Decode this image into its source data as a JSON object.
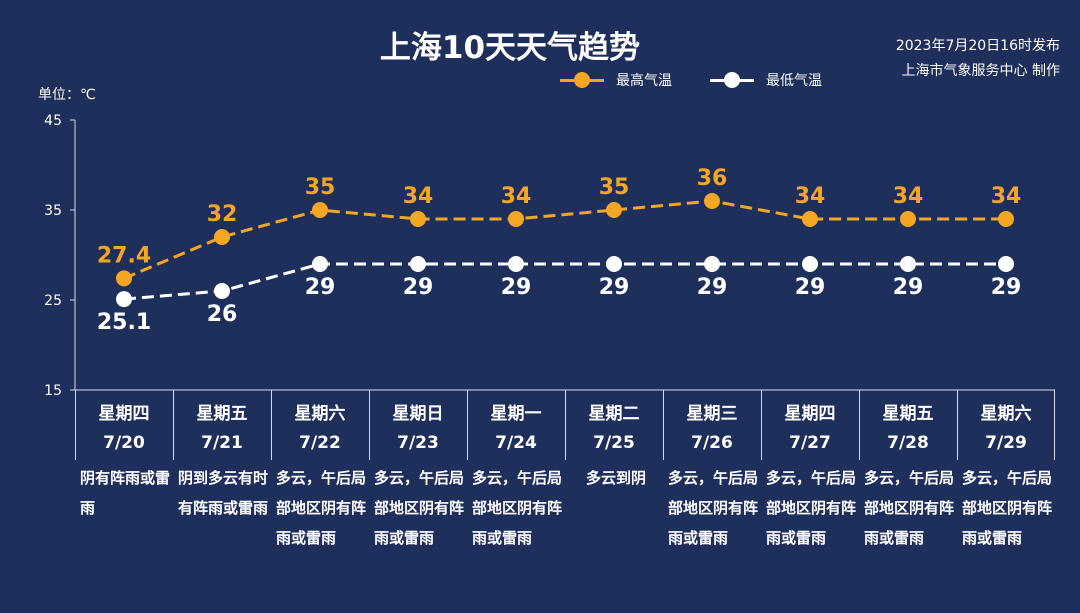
{
  "header": {
    "title": "上海10天天气趋势",
    "publish_line1": "2023年7月20日16时发布",
    "publish_line2": "上海市气象服务中心 制作",
    "unit_label": "单位：℃"
  },
  "colors": {
    "background": "#1f2f5c",
    "high_series": "#f5a623",
    "low_series": "#ffffff",
    "axis": "#d6dce8"
  },
  "chart_data": {
    "type": "line",
    "yticks": [
      15,
      25,
      35,
      45
    ],
    "ylim": [
      15,
      45
    ],
    "ylabel": "单位：℃",
    "legend_position": "top-right",
    "grid": false,
    "categories": [
      "7/20",
      "7/21",
      "7/22",
      "7/23",
      "7/24",
      "7/25",
      "7/26",
      "7/27",
      "7/28",
      "7/29"
    ],
    "series": [
      {
        "name": "最高气温",
        "values": [
          27.4,
          32,
          35,
          34,
          34,
          35,
          36,
          34,
          34,
          34
        ],
        "labels": [
          "27.4",
          "32",
          "35",
          "34",
          "34",
          "35",
          "36",
          "34",
          "34",
          "34"
        ]
      },
      {
        "name": "最低气温",
        "values": [
          25.1,
          26,
          29,
          29,
          29,
          29,
          29,
          29,
          29,
          29
        ],
        "labels": [
          "25.1",
          "26",
          "29",
          "29",
          "29",
          "29",
          "29",
          "29",
          "29",
          "29"
        ]
      }
    ]
  },
  "days": [
    {
      "weekday": "星期四",
      "date": "7/20",
      "weather": "阴有阵雨或雷雨"
    },
    {
      "weekday": "星期五",
      "date": "7/21",
      "weather": "阴到多云有时有阵雨或雷雨"
    },
    {
      "weekday": "星期六",
      "date": "7/22",
      "weather": "多云，午后局部地区阴有阵雨或雷雨"
    },
    {
      "weekday": "星期日",
      "date": "7/23",
      "weather": "多云，午后局部地区阴有阵雨或雷雨"
    },
    {
      "weekday": "星期一",
      "date": "7/24",
      "weather": "多云，午后局部地区阴有阵雨或雷雨"
    },
    {
      "weekday": "星期二",
      "date": "7/25",
      "weather": "多云到阴"
    },
    {
      "weekday": "星期三",
      "date": "7/26",
      "weather": "多云，午后局部地区阴有阵雨或雷雨"
    },
    {
      "weekday": "星期四",
      "date": "7/27",
      "weather": "多云，午后局部地区阴有阵雨或雷雨"
    },
    {
      "weekday": "星期五",
      "date": "7/28",
      "weather": "多云，午后局部地区阴有阵雨或雷雨"
    },
    {
      "weekday": "星期六",
      "date": "7/29",
      "weather": "多云，午后局部地区阴有阵雨或雷雨"
    }
  ]
}
